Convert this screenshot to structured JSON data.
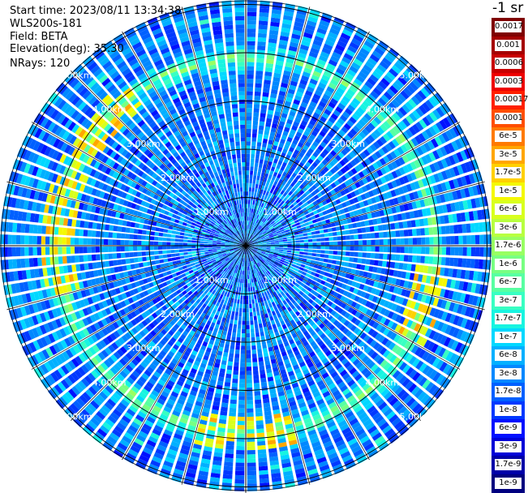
{
  "info": {
    "start_time": "Start time: 2023/08/11 13:34:38",
    "instrument": "WLS200s-181",
    "field": "Field: BETA",
    "elevation": "Elevation(deg): 35.30",
    "nrays": "NRays: 120"
  },
  "colorbar": {
    "unit": "-1 sr",
    "labels": [
      "0.0017",
      "0.001",
      "0.0006",
      "0.0003",
      "0.00017",
      "0.0001",
      "6e-5",
      "3e-5",
      "1.7e-5",
      "1e-5",
      "6e-6",
      "3e-6",
      "1.7e-6",
      "1e-6",
      "6e-7",
      "3e-7",
      "1.7e-7",
      "1e-7",
      "6e-8",
      "3e-8",
      "1.7e-8",
      "1e-8",
      "6e-9",
      "3e-9",
      "1.7e-9",
      "1e-9"
    ],
    "colors": [
      "#7f0000",
      "#a50000",
      "#c80000",
      "#ee0000",
      "#ff2000",
      "#ff4e00",
      "#ff7a00",
      "#ffa600",
      "#ffd000",
      "#f4f802",
      "#d8ff1e",
      "#b8ff40",
      "#98ff62",
      "#78ff82",
      "#58ffa2",
      "#38ffc2",
      "#18f4e0",
      "#00d8ff",
      "#00b0ff",
      "#0088ff",
      "#0060ff",
      "#0038ff",
      "#0010ff",
      "#0000d8",
      "#0000a8",
      "#00007f"
    ]
  },
  "chart_data": {
    "type": "heatmap",
    "title": "",
    "field": "BETA",
    "units": "sr^-1",
    "scale": "log",
    "value_range": [
      1e-09,
      0.0017
    ],
    "n_rays": 120,
    "elevation_deg": 35.3,
    "range_rings_km": [
      1,
      2,
      3,
      4,
      5
    ],
    "range_ring_labels": [
      "1.00km",
      "2.00km",
      "3.00km",
      "4.00km",
      "5.00km"
    ],
    "notable_features": [
      {
        "description": "enhanced backscatter ring",
        "range_km": 3.9,
        "value_approx": 3e-07
      },
      {
        "description": "high backscatter patches",
        "value_approx": 1e-05
      }
    ]
  }
}
